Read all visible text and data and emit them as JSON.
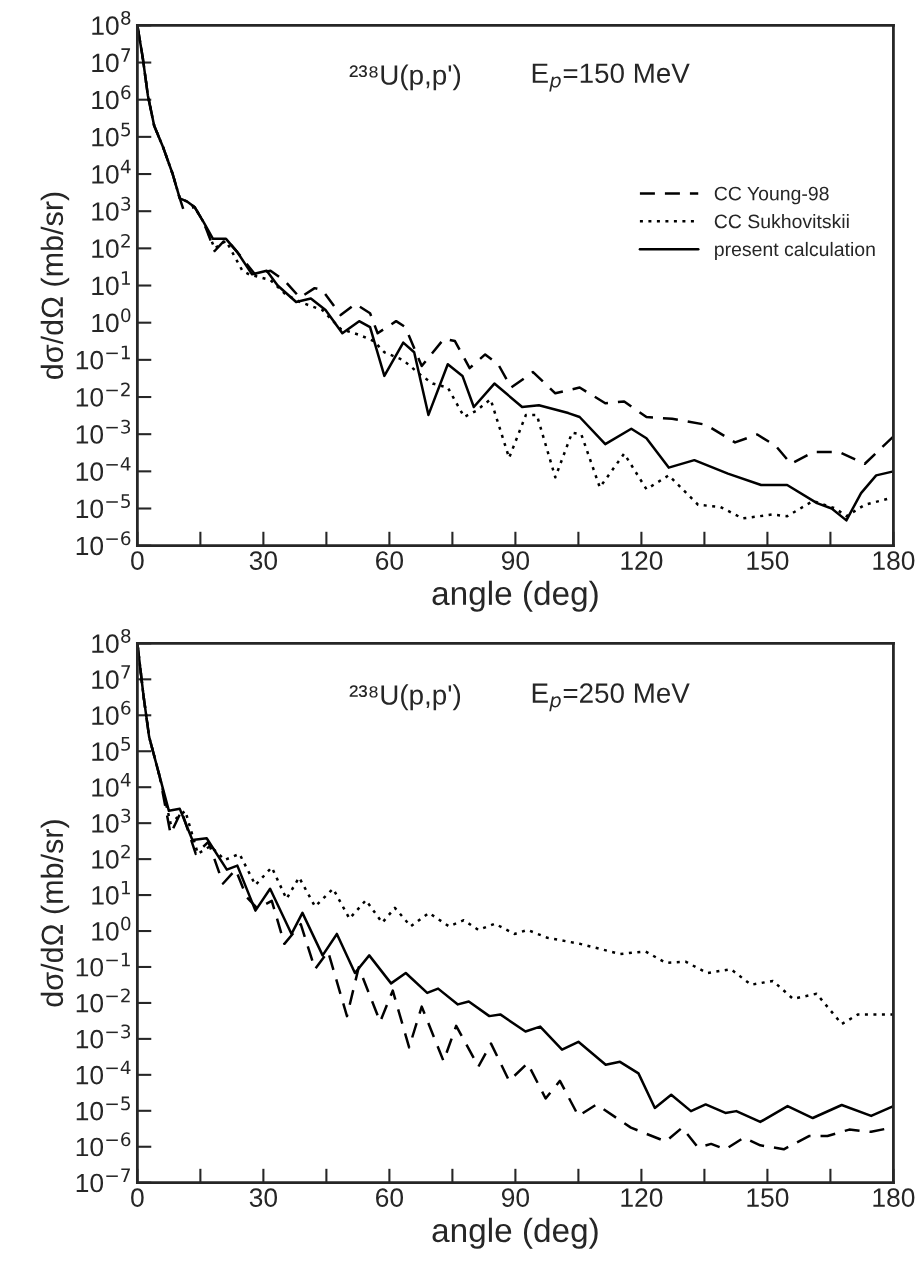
{
  "chart_data": [
    {
      "type": "line",
      "xlabel": "angle (deg)",
      "ylabel": "dσ/dΩ (mb/sr)",
      "log": "y",
      "legend": "right",
      "grid": false,
      "annotations": [
        "²³⁸U(p,p')",
        "E$_{p}$=150 MeV"
      ],
      "xlim": [
        0,
        180
      ],
      "xticks": [
        0,
        {
          "value": 15,
          "label": null
        },
        30,
        {
          "value": 45,
          "label": null
        },
        60,
        {
          "value": 75,
          "label": null
        },
        90,
        {
          "value": 105,
          "label": null
        },
        120,
        {
          "value": 135,
          "label": null
        },
        150,
        {
          "value": 165,
          "label": null
        },
        180
      ],
      "ylim": [
        1e-06,
        100000000.0
      ],
      "yticks": [
        {
          "value": 1e-06,
          "label": "10$^{−6}$"
        },
        {
          "value": 1e-05,
          "label": "10$^{−5}$"
        },
        {
          "value": 0.0001,
          "label": "10$^{−4}$"
        },
        {
          "value": 0.001,
          "label": "10$^{−3}$"
        },
        {
          "value": 0.01,
          "label": "10$^{−2}$"
        },
        {
          "value": 0.1,
          "label": "10$^{−1}$"
        },
        {
          "value": 1,
          "label": "10$^{0}$"
        },
        {
          "value": 10,
          "label": "10$^{1}$"
        },
        {
          "value": 100,
          "label": "10$^{2}$"
        },
        {
          "value": 1000.0,
          "label": "10$^{3}$"
        },
        {
          "value": 10000.0,
          "label": "10$^{4}$"
        },
        {
          "value": 100000.0,
          "label": "10$^{5}$"
        },
        {
          "value": 1000000.0,
          "label": "10$^{6}$"
        },
        {
          "value": 10000000.0,
          "label": "10$^{7}$"
        },
        {
          "value": 100000000.0,
          "label": "10$^{8}$"
        }
      ],
      "series": [
        {
          "name": "CC Young-98",
          "color": "#000000",
          "line_style": "dashed",
          "x": [
            0,
            1.3,
            2.5,
            4,
            6.2,
            8.4,
            10.1,
            11,
            13.6,
            15.8,
            18.4,
            21.1,
            23.8,
            28,
            31.7,
            35.2,
            38.7,
            42.2,
            44,
            48.4,
            51.9,
            55.4,
            57.2,
            61.6,
            63.8,
            67.7,
            73,
            75.6,
            79.1,
            82.8,
            85.9,
            89,
            94.2,
            99.5,
            105.3,
            111.4,
            115.9,
            121.2,
            127.3,
            135.3,
            142.3,
            147.6,
            152,
            155.6,
            160.9,
            167.1,
            173.2,
            180
          ],
          "values": [
            100000000.0,
            13000000.0,
            1300000.0,
            200000.0,
            50000.0,
            10000.0,
            2200.0,
            1070.0,
            1300.0,
            500.0,
            85,
            180.0,
            79,
            20,
            25,
            13,
            4.7,
            8.5,
            7.6,
            1.6,
            3.2,
            1.8,
            0.52,
            1.1,
            0.76,
            0.068,
            0.37,
            0.32,
            0.06,
            0.14,
            0.076,
            0.018,
            0.047,
            0.0126,
            0.018,
            0.0068,
            0.0076,
            0.0029,
            0.0026,
            0.0018,
            0.0006,
            0.00098,
            0.00048,
            0.00016,
            0.00033,
            0.00033,
            0.00016,
            0.00087
          ]
        },
        {
          "name": "CC Sukhovitskii",
          "color": "#000000",
          "line_style": "dotted",
          "x": [
            0,
            1.3,
            2.5,
            4,
            6.2,
            8.4,
            10.1,
            11.9,
            13.6,
            15.8,
            18.4,
            21.1,
            25,
            26.6,
            31.7,
            35.2,
            38.7,
            44,
            48.4,
            52.8,
            56.3,
            58.8,
            63.3,
            67.7,
            70.3,
            73.9,
            77.8,
            80.6,
            84.1,
            88.5,
            92.5,
            95.1,
            99.5,
            103.5,
            105.7,
            110.1,
            115.9,
            121.2,
            126.5,
            133.5,
            138.8,
            144.1,
            151.2,
            154.7,
            160.9,
            166.2,
            168.8,
            173.2,
            178.5
          ],
          "values": [
            100000000.0,
            13000000.0,
            1300000.0,
            200000.0,
            50000.0,
            10000.0,
            2200.0,
            1800.0,
            1300.0,
            500.0,
            100.0,
            160.0,
            25,
            20,
            14,
            5.9,
            3.6,
            2.2,
            0.68,
            0.47,
            0.32,
            0.16,
            0.098,
            0.037,
            0.023,
            0.018,
            0.0029,
            0.0042,
            0.0087,
            0.00023,
            0.0033,
            0.0033,
            6.9e-05,
            0.0011,
            0.00098,
            3.7e-05,
            0.0003,
            3.3e-05,
            7.8e-05,
            1.26e-05,
            1.1e-05,
            5.4e-06,
            6.9e-06,
            6.2e-06,
            1.6e-05,
            1e-05,
            6.2e-06,
            1.26e-05,
            1.8e-05
          ]
        },
        {
          "name": "present calculation",
          "color": "#000000",
          "line_style": "solid",
          "x": [
            0,
            1.3,
            2.5,
            4,
            6.2,
            8.4,
            10.1,
            11.9,
            13.6,
            15.8,
            18,
            21.1,
            23.8,
            27.3,
            30.8,
            33.4,
            37.8,
            41.3,
            44.8,
            48.8,
            52.8,
            55.4,
            58.8,
            63.3,
            65.9,
            69.3,
            73.9,
            77.4,
            80.1,
            85,
            91.6,
            95.6,
            102.6,
            105.3,
            111.4,
            117.6,
            121.2,
            126.5,
            132.6,
            140.6,
            148.5,
            154.7,
            161.8,
            165.3,
            168.8,
            172.3,
            175.9,
            180
          ],
          "values": [
            100000000.0,
            13000000.0,
            1300000.0,
            200000.0,
            50000.0,
            10000.0,
            2200.0,
            1800.0,
            1300.0,
            500.0,
            180.0,
            180.0,
            79,
            20,
            25,
            10,
            3.6,
            4.5,
            2.2,
            0.52,
            1.1,
            0.76,
            0.037,
            0.29,
            0.16,
            0.0033,
            0.076,
            0.037,
            0.0054,
            0.023,
            0.0054,
            0.006,
            0.0037,
            0.0029,
            0.00054,
            0.0014,
            0.00078,
            0.000126,
            0.0002,
            8.7e-05,
            4.3e-05,
            4.3e-05,
            1.4e-05,
            1e-05,
            4.8e-06,
            2.6e-05,
            7.8e-05,
            0.0001
          ]
        }
      ]
    },
    {
      "type": "line",
      "xlabel": "angle (deg)",
      "ylabel": "dσ/dΩ (mb/sr)",
      "log": "y",
      "grid": false,
      "annotations": [
        "²³⁸U(p,p')",
        "E$_{p}$=250 MeV"
      ],
      "xlim": [
        0,
        180
      ],
      "xticks": [
        0,
        {
          "value": 15,
          "label": null
        },
        30,
        {
          "value": 45,
          "label": null
        },
        60,
        {
          "value": 75,
          "label": null
        },
        90,
        {
          "value": 105,
          "label": null
        },
        120,
        {
          "value": 135,
          "label": null
        },
        150,
        {
          "value": 165,
          "label": null
        },
        180
      ],
      "ylim": [
        1e-07,
        100000000.0
      ],
      "yticks": [
        {
          "value": 1e-07,
          "label": "10$^{−7}$"
        },
        {
          "value": 1e-06,
          "label": "10$^{−6}$"
        },
        {
          "value": 1e-05,
          "label": "10$^{−5}$"
        },
        {
          "value": 0.0001,
          "label": "10$^{−4}$"
        },
        {
          "value": 0.001,
          "label": "10$^{−3}$"
        },
        {
          "value": 0.01,
          "label": "10$^{−2}$"
        },
        {
          "value": 0.1,
          "label": "10$^{−1}$"
        },
        {
          "value": 1,
          "label": "10$^{0}$"
        },
        {
          "value": 10,
          "label": "10$^{1}$"
        },
        {
          "value": 100,
          "label": "10$^{2}$"
        },
        {
          "value": 1000.0,
          "label": "10$^{3}$"
        },
        {
          "value": 10000.0,
          "label": "10$^{4}$"
        },
        {
          "value": 100000.0,
          "label": "10$^{5}$"
        },
        {
          "value": 1000000.0,
          "label": "10$^{6}$"
        },
        {
          "value": 10000000.0,
          "label": "10$^{7}$"
        },
        {
          "value": 100000000.0,
          "label": "10$^{8}$"
        }
      ],
      "series": [
        {
          "color": "#000000",
          "line_style": "dashed",
          "x": [
            0,
            1.5,
            2.8,
            5.3,
            7.9,
            10.5,
            13.9,
            16.9,
            20.4,
            23.4,
            26,
            28.6,
            32,
            35,
            38.9,
            42.3,
            45.4,
            49.9,
            52.7,
            57.8,
            60.8,
            64.7,
            67.7,
            72.9,
            75.9,
            81.2,
            84.2,
            88.5,
            92.9,
            97.2,
            100.6,
            105,
            109.3,
            117.5,
            125.8,
            129.7,
            133.5,
            136.6,
            140,
            144.4,
            148.3,
            153.9,
            160,
            164.3,
            169.5,
            174.7,
            180
          ],
          "values": [
            100000000.0,
            3200000.0,
            250000.0,
            20000.0,
            500.0,
            2200.0,
            140.0,
            300.0,
            21,
            51,
            8.9,
            4.2,
            6.9,
            0.44,
            1.55,
            0.087,
            0.27,
            0.0043,
            0.098,
            0.003,
            0.022,
            0.00058,
            0.0079,
            0.00024,
            0.0023,
            0.00017,
            0.00074,
            6.8e-05,
            0.00021,
            2.2e-05,
            6.8e-05,
            7.2e-06,
            1.5e-05,
            3.4e-06,
            1.4e-06,
            3.4e-06,
            9.5e-07,
            1.2e-06,
            8.5e-07,
            1.8e-06,
            1.1e-06,
            8.5e-07,
            2e-06,
            2e-06,
            3e-06,
            2.6e-06,
            3.5e-06
          ]
        },
        {
          "color": "#000000",
          "line_style": "dotted",
          "x": [
            0,
            1.5,
            2.8,
            5.3,
            7.9,
            11.4,
            14.4,
            17.4,
            20.8,
            24.3,
            28.1,
            32,
            35.5,
            38.5,
            42.3,
            46.6,
            50.5,
            54.4,
            58.3,
            61.3,
            65.1,
            69.4,
            74.2,
            77.7,
            81.2,
            85.1,
            89.8,
            92.9,
            97.6,
            105.4,
            114.9,
            121,
            125.8,
            130.5,
            135.7,
            141.3,
            146.1,
            151.3,
            156.1,
            161.7,
            167.7,
            171.6,
            180
          ],
          "values": [
            100000000.0,
            3200000.0,
            250000.0,
            20000.0,
            1000.0,
            2200.0,
            140.0,
            230.0,
            95,
            140.0,
            19,
            59,
            7.8,
            31,
            4.8,
            15,
            2.2,
            7.2,
            1.7,
            4.4,
            1.35,
            3.2,
            1.35,
            2,
            1.07,
            1.6,
            0.83,
            1.07,
            0.65,
            0.44,
            0.23,
            0.27,
            0.13,
            0.14,
            0.068,
            0.087,
            0.032,
            0.041,
            0.013,
            0.018,
            0.0026,
            0.0048,
            0.0048
          ]
        },
        {
          "color": "#000000",
          "line_style": "solid",
          "x": [
            0,
            1.5,
            2.8,
            5.3,
            7.5,
            10.1,
            13.1,
            16.5,
            21.3,
            23.8,
            28.1,
            31.6,
            36.7,
            39.3,
            44.1,
            47.5,
            51.8,
            55.2,
            60.4,
            63.9,
            69,
            71.6,
            76.3,
            78.9,
            83.8,
            86.4,
            92.4,
            95.9,
            101.1,
            105,
            111.5,
            114.9,
            119.3,
            123.2,
            127.1,
            131.8,
            135.3,
            140,
            142.6,
            148.3,
            154.8,
            160.8,
            167.7,
            174.7,
            180
          ],
          "values": [
            100000000.0,
            3200000.0,
            250000.0,
            20000.0,
            2200.0,
            2500.0,
            340.0,
            380.0,
            51,
            66,
            3.7,
            15,
            0.83,
            3.2,
            0.21,
            0.83,
            0.068,
            0.21,
            0.035,
            0.068,
            0.019,
            0.025,
            0.0091,
            0.011,
            0.0043,
            0.0048,
            0.0016,
            0.0022,
            0.0005,
            0.00083,
            0.00019,
            0.00023,
            0.00011,
            1.2e-05,
            2.8e-05,
            9.8e-06,
            1.5e-05,
            8.7e-06,
            9.8e-06,
            4.9e-06,
            1.35e-05,
            6.3e-06,
            1.45e-05,
            7.2e-06,
            1.35e-05
          ]
        }
      ]
    }
  ]
}
